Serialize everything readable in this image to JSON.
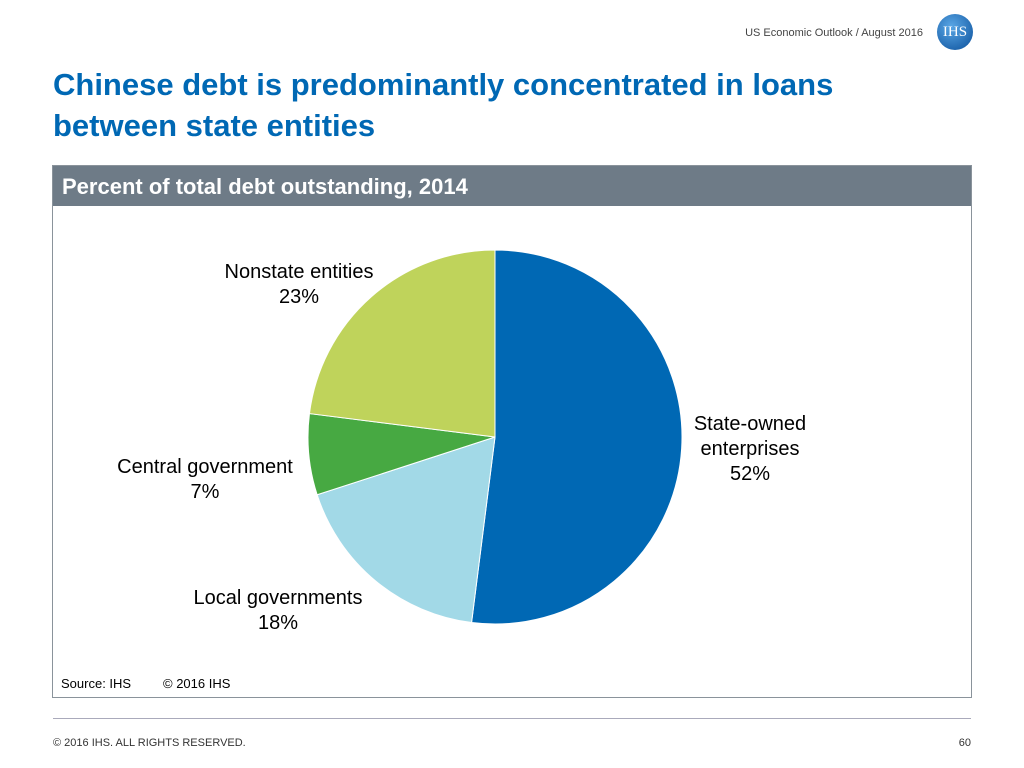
{
  "header": {
    "outlook": "US Economic Outlook / August 2016",
    "logo": "IHS"
  },
  "title": "Chinese debt is predominantly concentrated in loans between state entities",
  "chart_data": {
    "type": "pie",
    "title": "Percent of total debt outstanding, 2014",
    "categories": [
      "State-owned enterprises",
      "Local governments",
      "Central government",
      "Nonstate entities"
    ],
    "values": [
      52,
      18,
      7,
      23
    ],
    "value_labels": [
      "52%",
      "18%",
      "7%",
      "23%"
    ],
    "colors": [
      "#0068b4",
      "#a2d9e7",
      "#47a942",
      "#bfd35b"
    ],
    "source": "Source: IHS",
    "copyright": "© 2016 IHS"
  },
  "footer": {
    "rights": "© 2016 IHS. ALL RIGHTS RESERVED.",
    "page": "60"
  }
}
